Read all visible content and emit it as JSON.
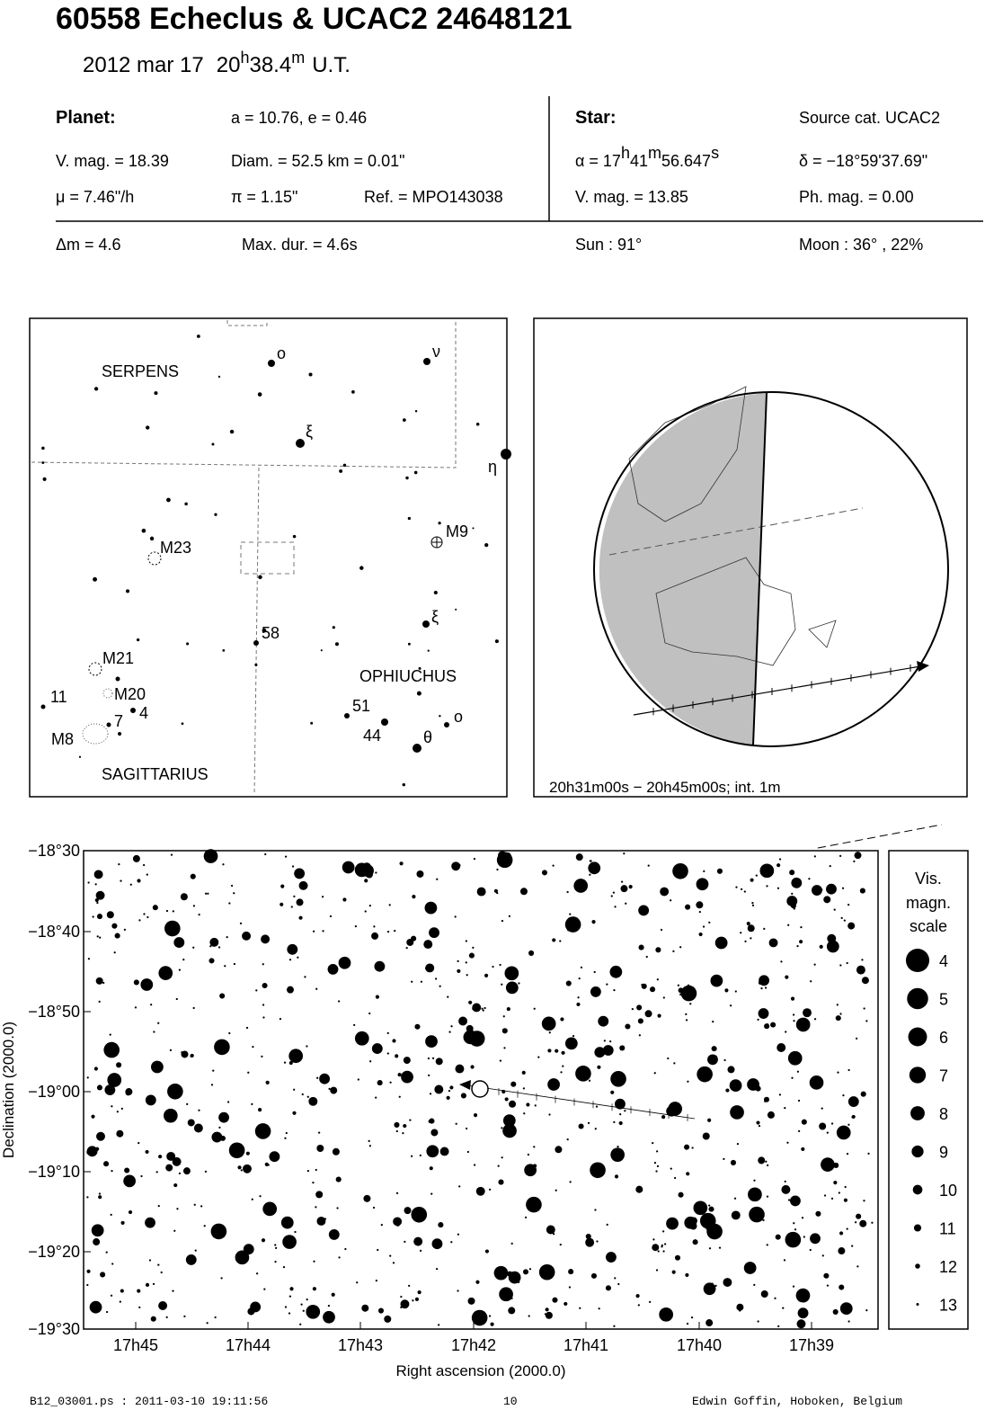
{
  "header": {
    "title": "60558 Echeclus  &  UCAC2 24648121",
    "date": "2012 mar 17",
    "time": [
      "20",
      "h",
      "38.4",
      "m"
    ],
    "timescale": "U.T."
  },
  "info": {
    "planet_label": "Planet:",
    "orbit": "a = 10.76, e = 0.46",
    "vmag": "V. mag. = 18.39",
    "diam": "Diam. = 52.5 km = 0.01\"",
    "mu": "μ =  7.46\"/h",
    "pi": "π =  1.15\"",
    "ref": "Ref. = MPO143038",
    "star_label": "Star:",
    "source": "Source cat.  UCAC2",
    "alpha": [
      "α = 17",
      "h",
      "41",
      "m",
      "56.647",
      "s"
    ],
    "delta": "δ = −18°59'37.69\"",
    "star_vmag": "V. mag. = 13.85",
    "phmag": "Ph. mag. =  0.00",
    "dm": "Δm = 4.6",
    "maxdur": "Max. dur. = 4.6s",
    "sun": "Sun :  91°",
    "moon": "Moon :  36° , 22%"
  },
  "finder": {
    "labels": [
      "SERPENS",
      "M23",
      "M9",
      "58",
      "ξ",
      "M21",
      "OPHIUCHUS",
      "M20",
      "11",
      "51",
      "4",
      "7",
      "M8",
      "44",
      "θ",
      "o",
      "o",
      "ν",
      "ξ",
      "η",
      "SAGITTARIUS"
    ]
  },
  "globe": {
    "caption": "20h31m00s − 20h45m00s; int.  1m"
  },
  "chart": {
    "yticks": [
      "−18°30",
      "−18°40",
      "−18°50",
      "−19°00",
      "−19°10",
      "−19°20",
      "−19°30"
    ],
    "xticks": [
      "17h45",
      "17h44",
      "17h43",
      "17h42",
      "17h41",
      "17h40",
      "17h39"
    ],
    "xlabel": "Right ascension (2000.0)",
    "ylabel": "Declination (2000.0)"
  },
  "scale": {
    "title": [
      "Vis.",
      "magn.",
      "scale"
    ],
    "mags": [
      4,
      5,
      6,
      7,
      8,
      9,
      10,
      11,
      12,
      13
    ]
  },
  "footer": {
    "file": "B12_03001.ps : 2011-03-10 19:11:56",
    "page": "10",
    "author": "Edwin Goffin, Hoboken, Belgium"
  }
}
